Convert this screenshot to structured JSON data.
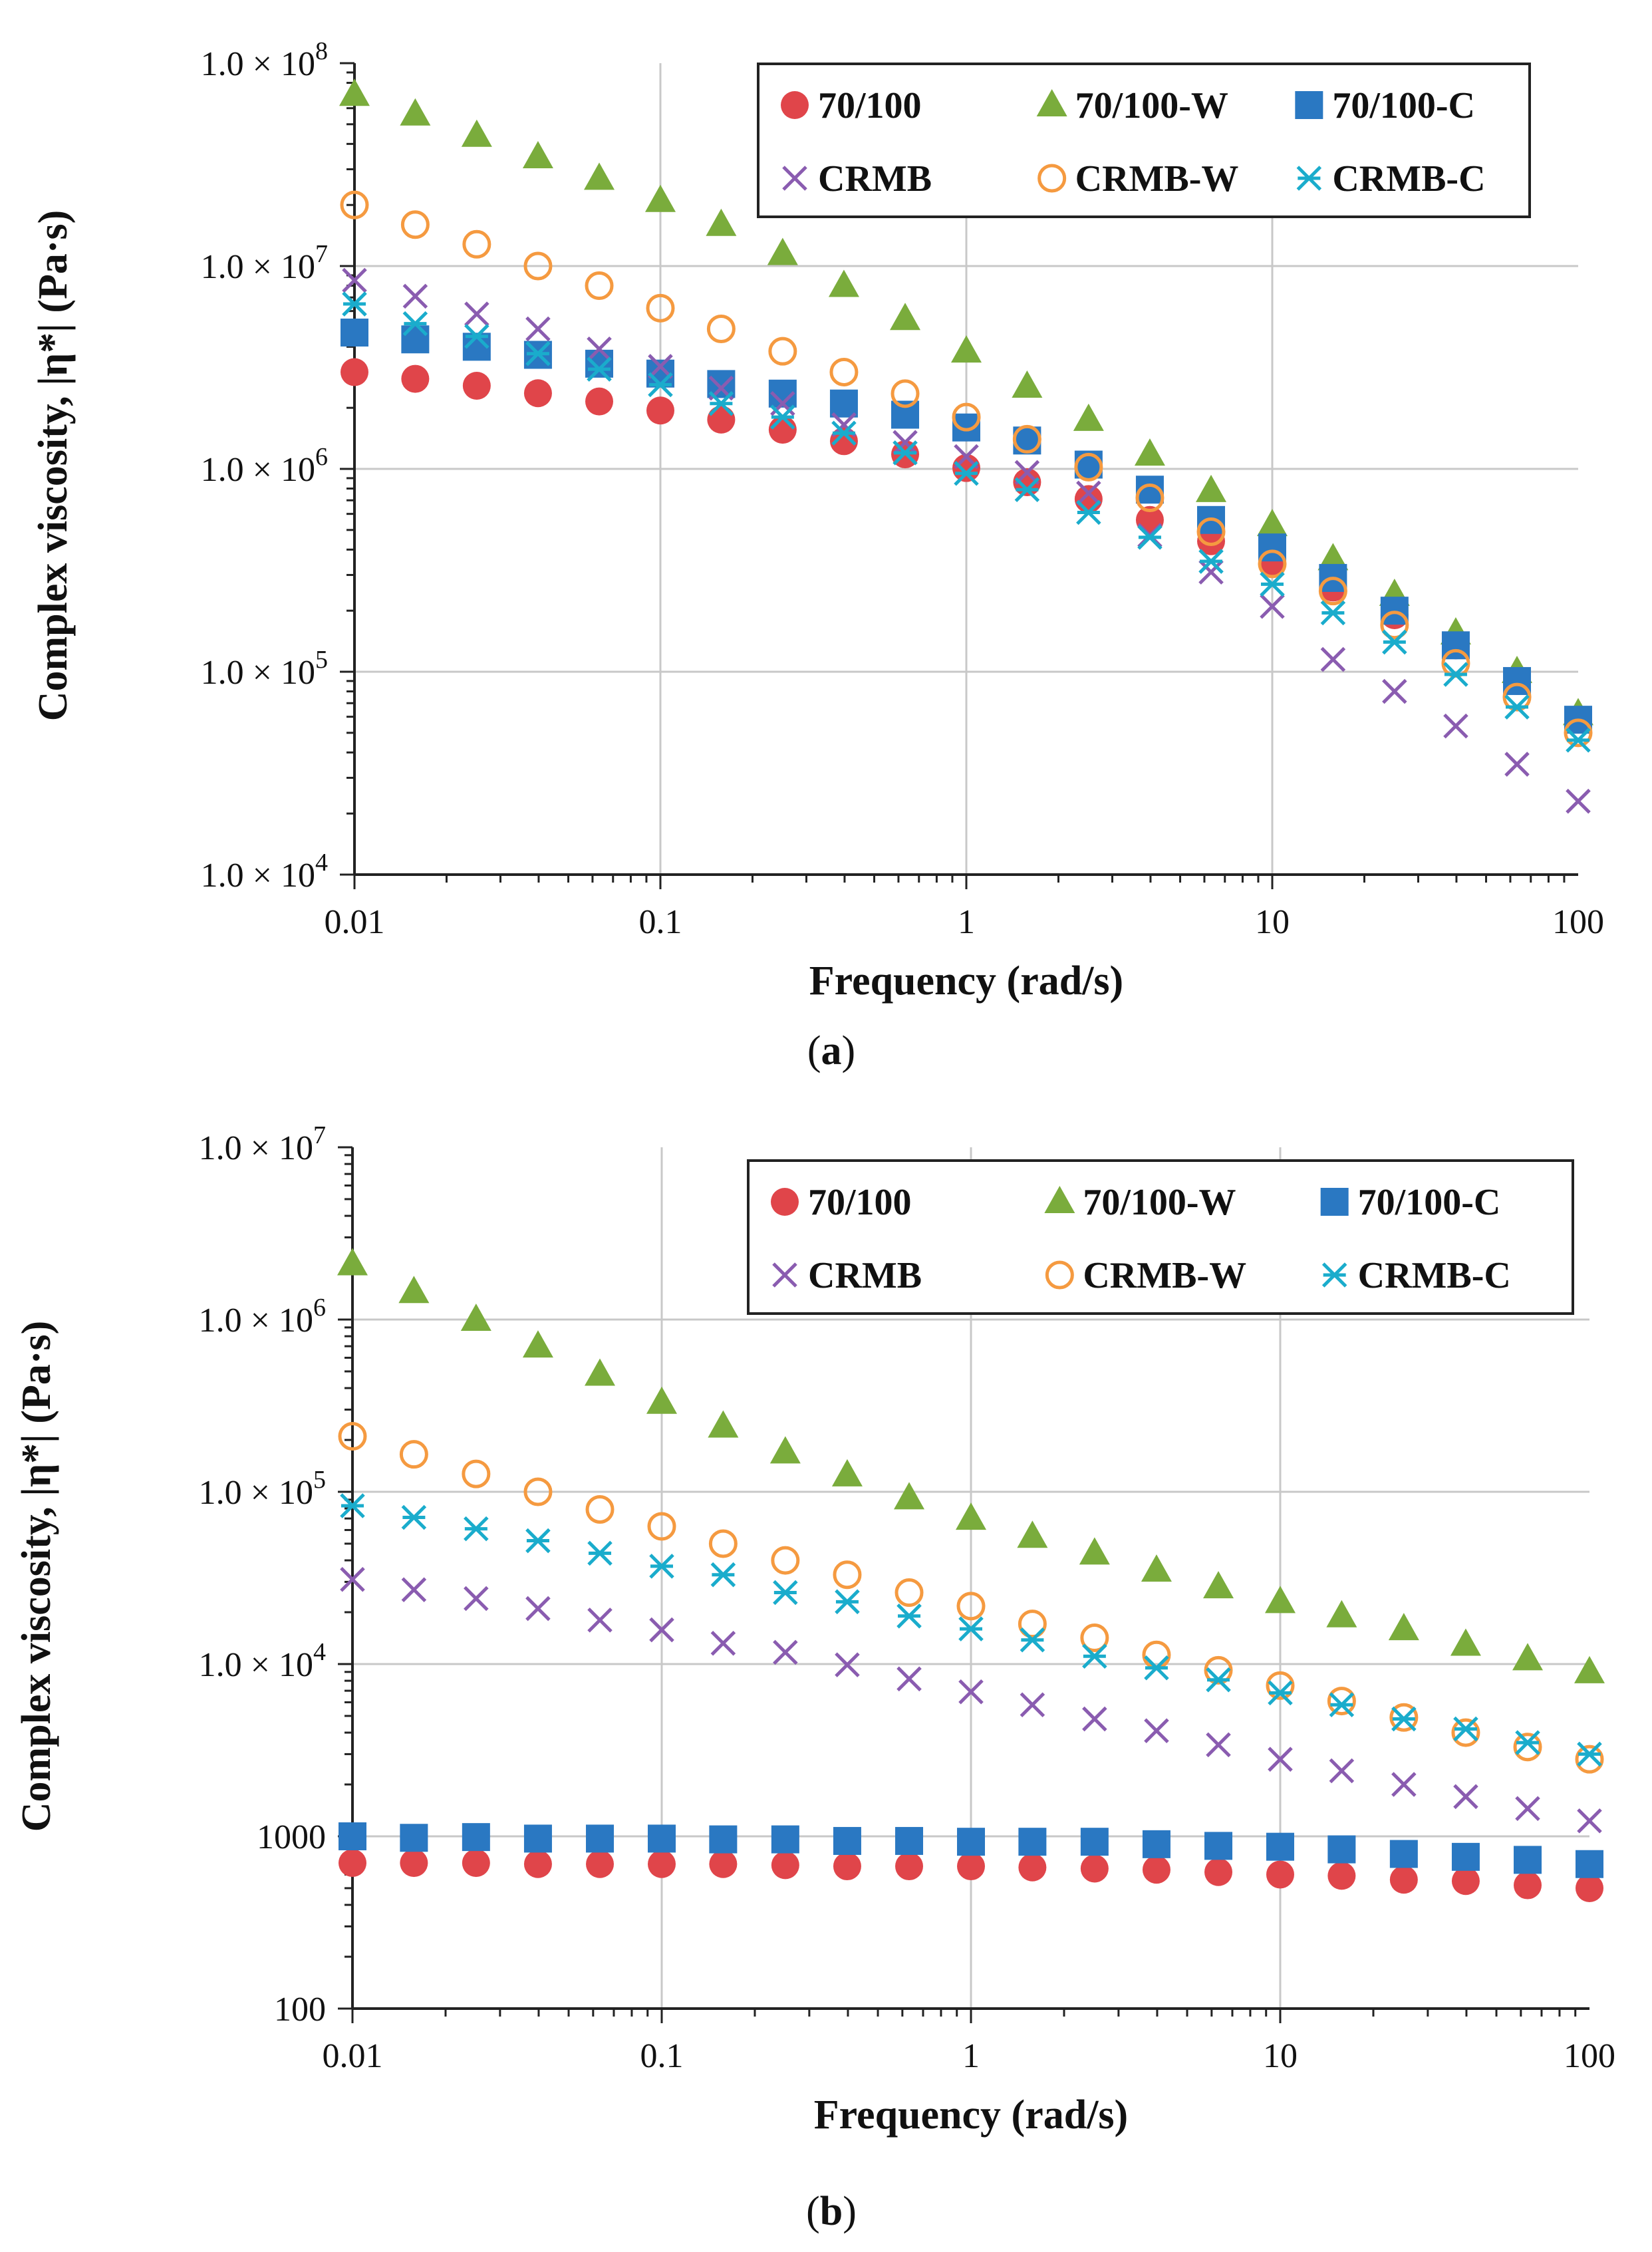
{
  "colors": {
    "s70100": "#e0454a",
    "s70100W": "#7aac3c",
    "s70100C": "#2a78c2",
    "sCRMB": "#8a5cb0",
    "sCRMBW": "#f59a40",
    "sCRMBC": "#1aaccc",
    "grid": "#c8c8c8"
  },
  "chart_data": [
    {
      "type": "scatter",
      "panel_label": "a",
      "xlabel": "Frequency (rad/s)",
      "ylabel": "Complex viscosity, |η*| (Pa·s)",
      "x_scale": "log",
      "y_scale": "log",
      "xlim": [
        0.01,
        100
      ],
      "ylim": [
        10000,
        100000000
      ],
      "x_ticks": [
        {
          "value": 0.01,
          "label": "0.01"
        },
        {
          "value": 0.1,
          "label": "0.1"
        },
        {
          "value": 1,
          "label": "1"
        },
        {
          "value": 10,
          "label": "10"
        },
        {
          "value": 100,
          "label": "100"
        }
      ],
      "y_ticks": [
        {
          "value": 10000,
          "label": "1.0 × 10",
          "exp": "4"
        },
        {
          "value": 100000,
          "label": "1.0 × 10",
          "exp": "5"
        },
        {
          "value": 1000000,
          "label": "1.0 × 10",
          "exp": "6"
        },
        {
          "value": 10000000,
          "label": "1.0 × 10",
          "exp": "7"
        },
        {
          "value": 100000000,
          "label": "1.0 × 10",
          "exp": "8"
        }
      ],
      "grid": true,
      "legend_position": "top-right",
      "x": [
        0.01,
        0.0158,
        0.0251,
        0.0398,
        0.0631,
        0.1,
        0.158,
        0.251,
        0.398,
        0.631,
        1,
        1.58,
        2.51,
        3.98,
        6.31,
        10,
        15.8,
        25.1,
        39.8,
        63.1,
        100
      ],
      "series": [
        {
          "name": "70/100",
          "marker": "circle",
          "values": [
            3000000,
            2780000,
            2570000,
            2360000,
            2150000,
            1940000,
            1750000,
            1560000,
            1370000,
            1180000,
            1010000,
            860000,
            710000,
            560000,
            440000,
            340000,
            260000,
            190000,
            135000,
            90000,
            58000
          ]
        },
        {
          "name": "70/100-W",
          "marker": "triangle",
          "values": [
            70000000,
            56000000,
            44000000,
            34500000,
            27000000,
            21000000,
            16000000,
            11500000,
            8000000,
            5500000,
            3800000,
            2550000,
            1750000,
            1180000,
            780000,
            530000,
            360000,
            240000,
            155000,
            100000,
            62000
          ]
        },
        {
          "name": "70/100-C",
          "marker": "square",
          "values": [
            4700000,
            4350000,
            4000000,
            3650000,
            3300000,
            2950000,
            2620000,
            2350000,
            2100000,
            1850000,
            1600000,
            1380000,
            1050000,
            790000,
            560000,
            410000,
            290000,
            200000,
            135000,
            90000,
            58000
          ]
        },
        {
          "name": "CRMB",
          "marker": "cross",
          "values": [
            8500000,
            7100000,
            5800000,
            4900000,
            3900000,
            3200000,
            2500000,
            2100000,
            1650000,
            1350000,
            1150000,
            960000,
            760000,
            470000,
            310000,
            210000,
            115000,
            80000,
            54000,
            35000,
            23000
          ]
        },
        {
          "name": "CRMB-W",
          "marker": "ring",
          "values": [
            20000000,
            16000000,
            12800000,
            10000000,
            8000000,
            6200000,
            4900000,
            3800000,
            3000000,
            2350000,
            1800000,
            1400000,
            1020000,
            720000,
            490000,
            340000,
            250000,
            170000,
            110000,
            75000,
            50000
          ]
        },
        {
          "name": "CRMB-C",
          "marker": "asterisk",
          "values": [
            6500000,
            5200000,
            4500000,
            3700000,
            3100000,
            2600000,
            2100000,
            1800000,
            1500000,
            1200000,
            950000,
            790000,
            610000,
            460000,
            350000,
            270000,
            195000,
            140000,
            97000,
            67000,
            46000
          ]
        }
      ]
    },
    {
      "type": "scatter",
      "panel_label": "b",
      "xlabel": "Frequency (rad/s)",
      "ylabel": "Complex viscosity, |η*| (Pa·s)",
      "x_scale": "log",
      "y_scale": "log",
      "xlim": [
        0.01,
        100
      ],
      "ylim": [
        100,
        10000000
      ],
      "x_ticks": [
        {
          "value": 0.01,
          "label": "0.01"
        },
        {
          "value": 0.1,
          "label": "0.1"
        },
        {
          "value": 1,
          "label": "1"
        },
        {
          "value": 10,
          "label": "10"
        },
        {
          "value": 100,
          "label": "100"
        }
      ],
      "y_ticks": [
        {
          "value": 100,
          "label": "100",
          "exp": ""
        },
        {
          "value": 1000,
          "label": "1000",
          "exp": ""
        },
        {
          "value": 10000,
          "label": "1.0 × 10",
          "exp": "4"
        },
        {
          "value": 100000,
          "label": "1.0 × 10",
          "exp": "5"
        },
        {
          "value": 1000000,
          "label": "1.0 × 10",
          "exp": "6"
        },
        {
          "value": 10000000,
          "label": "1.0 × 10",
          "exp": "7"
        }
      ],
      "grid": true,
      "legend_position": "top-right",
      "x": [
        0.01,
        0.0158,
        0.0251,
        0.0398,
        0.0631,
        0.1,
        0.158,
        0.251,
        0.398,
        0.631,
        1,
        1.58,
        2.51,
        3.98,
        6.31,
        10,
        15.8,
        25.1,
        39.8,
        63.1,
        100
      ],
      "series": [
        {
          "name": "70/100",
          "marker": "circle",
          "values": [
            700,
            700,
            700,
            690,
            690,
            690,
            690,
            680,
            670,
            670,
            670,
            660,
            650,
            640,
            620,
            600,
            590,
            560,
            550,
            520,
            500
          ]
        },
        {
          "name": "70/100-W",
          "marker": "triangle",
          "values": [
            2100000,
            1450000,
            1000000,
            700000,
            480000,
            330000,
            240000,
            170000,
            125000,
            92000,
            70000,
            55000,
            44000,
            35000,
            28000,
            23000,
            19000,
            16000,
            13000,
            10700,
            9000
          ]
        },
        {
          "name": "70/100-C",
          "marker": "square",
          "values": [
            1000,
            980,
            990,
            970,
            970,
            970,
            960,
            960,
            940,
            940,
            930,
            930,
            930,
            900,
            880,
            870,
            840,
            790,
            760,
            730,
            690
          ]
        },
        {
          "name": "CRMB",
          "marker": "cross",
          "values": [
            31000,
            27000,
            24000,
            21000,
            18000,
            15800,
            13200,
            11700,
            9900,
            8200,
            6900,
            5800,
            4800,
            4100,
            3400,
            2800,
            2400,
            2000,
            1700,
            1450,
            1230
          ]
        },
        {
          "name": "CRMB-W",
          "marker": "ring",
          "values": [
            210000,
            165000,
            127000,
            100000,
            79000,
            63000,
            50000,
            40000,
            33000,
            26000,
            21700,
            17100,
            14200,
            11300,
            9200,
            7500,
            6100,
            4900,
            4000,
            3300,
            2800
          ]
        },
        {
          "name": "CRMB-C",
          "marker": "asterisk",
          "values": [
            83000,
            71000,
            61000,
            52000,
            44000,
            37000,
            33000,
            26000,
            23000,
            19000,
            16000,
            13800,
            11100,
            9500,
            8100,
            6800,
            5800,
            4800,
            4200,
            3500,
            3000
          ]
        }
      ]
    }
  ]
}
